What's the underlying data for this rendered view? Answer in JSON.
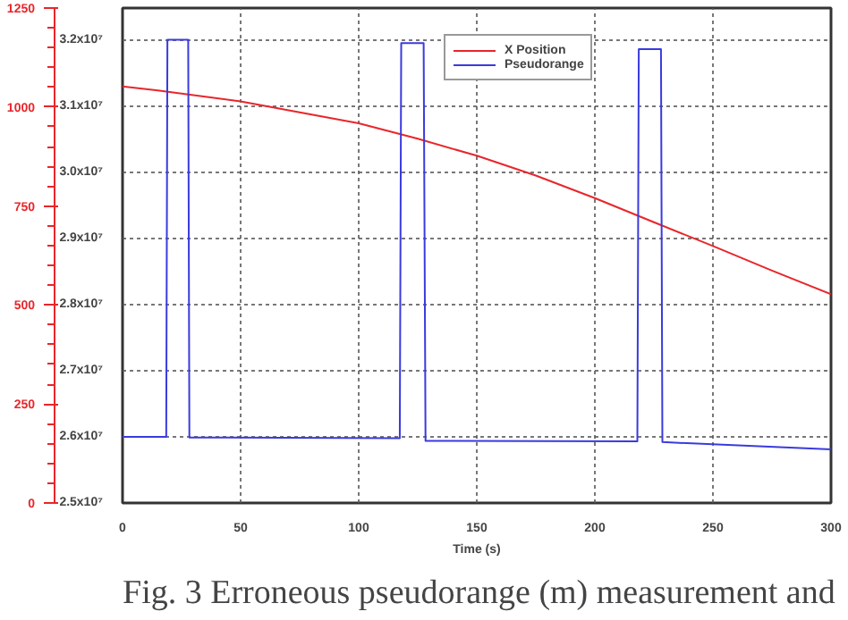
{
  "chart_data": {
    "type": "line",
    "xlabel": "Time (s)",
    "xlim": [
      0,
      300
    ],
    "xticks": [
      0,
      50,
      100,
      150,
      200,
      250,
      300
    ],
    "ylim": [
      25000000,
      32480000
    ],
    "yticks": [
      {
        "value": 25000000,
        "label": "2.5x10⁷"
      },
      {
        "value": 26000000,
        "label": "2.6x10⁷"
      },
      {
        "value": 27000000,
        "label": "2.7x10⁷"
      },
      {
        "value": 28000000,
        "label": "2.8x10⁷"
      },
      {
        "value": 29000000,
        "label": "2.9x10⁷"
      },
      {
        "value": 30000000,
        "label": "3.0x10⁷"
      },
      {
        "value": 31000000,
        "label": "3.1x10⁷"
      },
      {
        "value": 32000000,
        "label": "3.2x10⁷"
      }
    ],
    "y2lim": [
      0,
      1250
    ],
    "y2ticks": [
      0,
      250,
      500,
      750,
      1000,
      1250
    ],
    "series": [
      {
        "name": "X Position",
        "color": "#e8262b",
        "axis": "y2",
        "x": [
          0,
          15,
          50,
          100,
          125,
          150,
          175,
          200,
          225,
          250,
          275,
          300
        ],
        "values": [
          1052,
          1042,
          1014,
          959,
          920,
          877,
          827,
          770,
          709,
          649,
          587,
          527
        ]
      },
      {
        "name": "Pseudorange",
        "color": "#3a3adf",
        "axis": "y",
        "x": [
          0,
          18.5,
          19,
          27.8,
          28.3,
          117.4,
          118,
          127.5,
          128.3,
          218,
          218.6,
          228,
          228.6,
          300
        ],
        "values": [
          26000000,
          26000000,
          32000000,
          32000000,
          25990000,
          25980000,
          31950000,
          31950000,
          25940000,
          25930000,
          31860000,
          31860000,
          25920000,
          25810000
        ]
      }
    ],
    "grid": true,
    "legend": "top",
    "annotations": [
      "Fig. 3 Erroneous pseudorange (m) measurement and"
    ]
  }
}
